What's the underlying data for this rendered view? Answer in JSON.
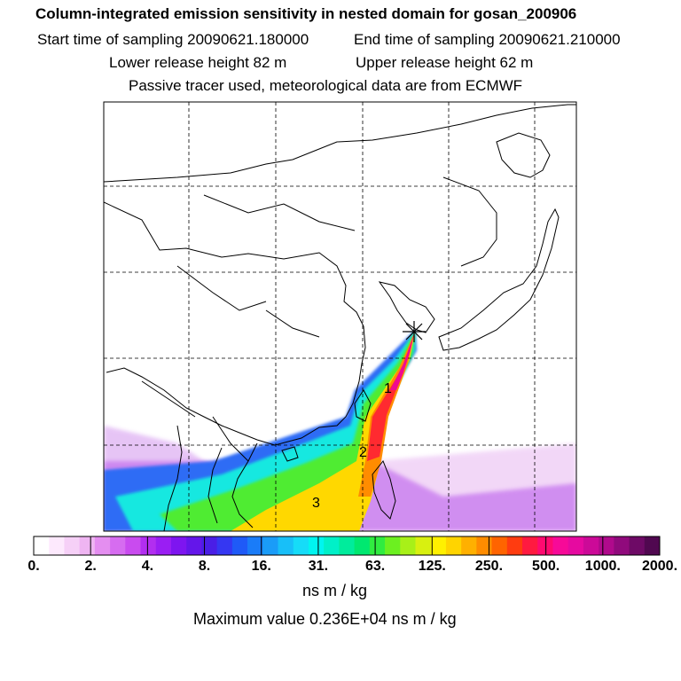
{
  "header": {
    "title": "Column-integrated emission sensitivity in nested domain for gosan_200906",
    "start_label": "Start time of sampling 20090621.180000",
    "end_label": "End time of sampling 20090621.210000",
    "lower_release": "Lower release height   82 m",
    "upper_release": "Upper release height   62 m",
    "tracer_note": "Passive tracer used, meteorological data are from ECMWF"
  },
  "map": {
    "region_labels": [
      "1",
      "2",
      "3"
    ],
    "release_site_marker": "star"
  },
  "colorbar": {
    "tick_labels": [
      "0.",
      "2.",
      "4.",
      "8.",
      "16.",
      "31.",
      "63.",
      "125.",
      "250.",
      "500.",
      "1000.",
      "2000."
    ],
    "segment_colors": [
      "#ffffff",
      "#fde9fd",
      "#f6d0f7",
      "#efb5f2",
      "#e48ef0",
      "#d66cf0",
      "#c94bef",
      "#b22ef0",
      "#9a1ef3",
      "#7e15f0",
      "#6416ea",
      "#4a1ee6",
      "#3537f2",
      "#1f5af7",
      "#1a7cf8",
      "#1a9cf8",
      "#18bff8",
      "#16dcf8",
      "#00f5f0",
      "#00f0c8",
      "#00ec9c",
      "#00e870",
      "#30ec40",
      "#6cf020",
      "#a8f018",
      "#d8f010",
      "#fff000",
      "#ffd400",
      "#ffb000",
      "#ff8c00",
      "#ff6400",
      "#ff3c10",
      "#ff1a40",
      "#ff0a70",
      "#f70a98",
      "#e60aa0",
      "#cc0a98",
      "#b00a8c",
      "#900a7c",
      "#6e0a66",
      "#500850"
    ],
    "units": "ns m / kg",
    "max_value_text": "Maximum value  0.236E+04 ns m / kg"
  },
  "colors": {
    "coastline": "#000000",
    "grid": "#000000",
    "marker": "#000000"
  }
}
